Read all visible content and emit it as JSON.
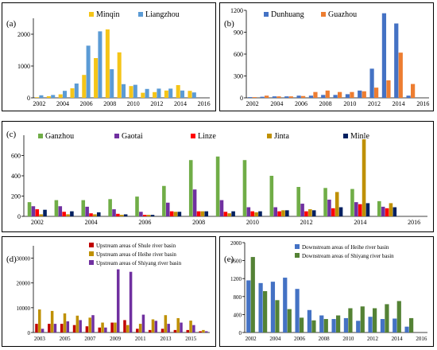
{
  "colors": {
    "minqin": "#F5C518",
    "liangzhou": "#5B9BD5",
    "dunhuang": "#4472C4",
    "guazhou": "#ED7D31",
    "ganzhou": "#70AD47",
    "gaotai": "#7030A0",
    "linze": "#FF0000",
    "jinta": "#BF9000",
    "minle": "#002060",
    "shule": "#C00000",
    "heihe_up": "#BF9000",
    "shiyang_up": "#7030A0",
    "heihe_down": "#4472C4",
    "shiyang_down": "#548235"
  },
  "chart_data": [
    {
      "id": "a",
      "label": "(a)",
      "type": "bar",
      "categories": [
        2002,
        2003,
        2004,
        2005,
        2006,
        2007,
        2008,
        2009,
        2010,
        2011,
        2012,
        2013,
        2014,
        2015,
        2016
      ],
      "x_ticks": [
        "2002",
        "2004",
        "2006",
        "2008",
        "2010",
        "2012",
        "2014",
        "2016"
      ],
      "ylim": [
        0,
        2500
      ],
      "y_ticks": [
        "0",
        "1000",
        "2000"
      ],
      "y_tick_values": [
        0,
        1000,
        2000
      ],
      "legend": "top-center",
      "series": [
        {
          "name": "Minqin",
          "color_key": "minqin",
          "values": [
            20,
            50,
            110,
            300,
            720,
            1250,
            2150,
            1430,
            370,
            160,
            180,
            230,
            400,
            220,
            0
          ]
        },
        {
          "name": "Liangzhou",
          "color_key": "liangzhou",
          "values": [
            80,
            90,
            220,
            450,
            1640,
            2090,
            900,
            430,
            410,
            280,
            290,
            290,
            230,
            170,
            0
          ]
        }
      ]
    },
    {
      "id": "b",
      "label": "(b)",
      "type": "bar",
      "categories": [
        2002,
        2003,
        2004,
        2005,
        2006,
        2007,
        2008,
        2009,
        2010,
        2011,
        2012,
        2013,
        2014,
        2015,
        2016
      ],
      "x_ticks": [
        "2002",
        "2004",
        "2006",
        "2008",
        "2010",
        "2012",
        "2014",
        "2016"
      ],
      "ylim": [
        0,
        1200
      ],
      "y_ticks": [
        "0",
        "300",
        "600",
        "900",
        "1200"
      ],
      "y_tick_values": [
        0,
        300,
        600,
        900,
        1200
      ],
      "legend": "top-center",
      "series": [
        {
          "name": "Dunhuang",
          "color_key": "dunhuang",
          "values": [
            10,
            15,
            20,
            20,
            30,
            30,
            40,
            40,
            50,
            100,
            400,
            1160,
            1020,
            30,
            0
          ]
        },
        {
          "name": "Guazhou",
          "color_key": "guazhou",
          "values": [
            10,
            30,
            20,
            20,
            25,
            80,
            100,
            80,
            80,
            90,
            140,
            240,
            620,
            190,
            0
          ]
        }
      ]
    },
    {
      "id": "c",
      "label": "(c)",
      "type": "bar",
      "categories": [
        2002,
        2003,
        2004,
        2005,
        2006,
        2007,
        2008,
        2009,
        2010,
        2011,
        2012,
        2013,
        2014,
        2015,
        2016
      ],
      "x_ticks": [
        "2002",
        "2004",
        "2006",
        "2008",
        "2010",
        "2012",
        "2014",
        "2016"
      ],
      "ylim": [
        0,
        800
      ],
      "y_ticks": [
        "0",
        "200",
        "400",
        "600"
      ],
      "y_tick_values": [
        0,
        200,
        400,
        600
      ],
      "legend": "top-left",
      "series": [
        {
          "name": "Ganzhou",
          "color_key": "ganzhou",
          "values": [
            140,
            160,
            160,
            170,
            195,
            300,
            555,
            590,
            555,
            400,
            290,
            280,
            270,
            150,
            0
          ]
        },
        {
          "name": "Gaotai",
          "color_key": "gaotai",
          "values": [
            100,
            100,
            95,
            70,
            45,
            135,
            265,
            160,
            90,
            90,
            125,
            165,
            140,
            95,
            0
          ]
        },
        {
          "name": "Linze",
          "color_key": "linze",
          "values": [
            70,
            45,
            30,
            25,
            15,
            50,
            50,
            45,
            50,
            50,
            50,
            80,
            120,
            80,
            0
          ]
        },
        {
          "name": "Jinta",
          "color_key": "jinta",
          "values": [
            20,
            20,
            20,
            15,
            15,
            45,
            50,
            30,
            40,
            60,
            70,
            240,
            760,
            130,
            0
          ]
        },
        {
          "name": "Minle",
          "color_key": "minle",
          "values": [
            65,
            50,
            40,
            20,
            15,
            45,
            50,
            50,
            50,
            60,
            60,
            90,
            130,
            90,
            0
          ]
        }
      ]
    },
    {
      "id": "d",
      "label": "(d)",
      "type": "bar",
      "categories": [
        2003,
        2004,
        2005,
        2006,
        2007,
        2008,
        2009,
        2010,
        2011,
        2012,
        2013,
        2014,
        2015,
        2016
      ],
      "x_ticks": [
        "2003",
        "2005",
        "2007",
        "2009",
        "2011",
        "2013",
        "2015"
      ],
      "ylim": [
        0,
        35000
      ],
      "y_ticks": [
        "0",
        "10000",
        "20000",
        "30000"
      ],
      "y_tick_values": [
        0,
        10000,
        20000,
        30000
      ],
      "legend": "top-center",
      "series": [
        {
          "name": "Upstream areas of Shule river basin",
          "color_key": "shule",
          "values": [
            3500,
            3500,
            3500,
            3000,
            2500,
            2000,
            4000,
            5000,
            1500,
            1000,
            1500,
            1000,
            1000,
            500
          ]
        },
        {
          "name": "Upstream areas of Heihe river basin",
          "color_key": "heihe_up",
          "values": [
            9300,
            8700,
            7700,
            6800,
            6000,
            4000,
            4000,
            3000,
            3500,
            5300,
            7000,
            5800,
            4800,
            1000
          ]
        },
        {
          "name": "Upstream areas of Shiyang river basin",
          "color_key": "shiyang_up",
          "values": [
            1500,
            3500,
            4500,
            5000,
            7000,
            2000,
            25500,
            24500,
            7200,
            4700,
            3500,
            4000,
            3000,
            500
          ]
        }
      ]
    },
    {
      "id": "e",
      "label": "(e)",
      "type": "bar",
      "categories": [
        2002,
        2003,
        2004,
        2005,
        2006,
        2007,
        2008,
        2009,
        2010,
        2011,
        2012,
        2013,
        2014,
        2015,
        2016
      ],
      "x_ticks": [
        "2002",
        "2004",
        "2006",
        "2008",
        "2010",
        "2012",
        "2014",
        "2016"
      ],
      "ylim": [
        0,
        2000
      ],
      "y_ticks": [
        "0",
        "400",
        "800",
        "1200",
        "1600",
        "2000"
      ],
      "y_tick_values": [
        0,
        400,
        800,
        1200,
        1600,
        2000
      ],
      "legend": "top-center",
      "series": [
        {
          "name": "Downstream areas of Heihe river basin",
          "color_key": "heihe_down",
          "values": [
            1160,
            1100,
            1130,
            1220,
            970,
            500,
            380,
            300,
            320,
            260,
            350,
            300,
            310,
            130,
            0
          ]
        },
        {
          "name": "Downstream areas of Shiyang river basin",
          "color_key": "shiyang_down",
          "values": [
            1680,
            920,
            720,
            520,
            330,
            270,
            300,
            380,
            540,
            580,
            540,
            630,
            700,
            320,
            0
          ]
        }
      ]
    }
  ]
}
